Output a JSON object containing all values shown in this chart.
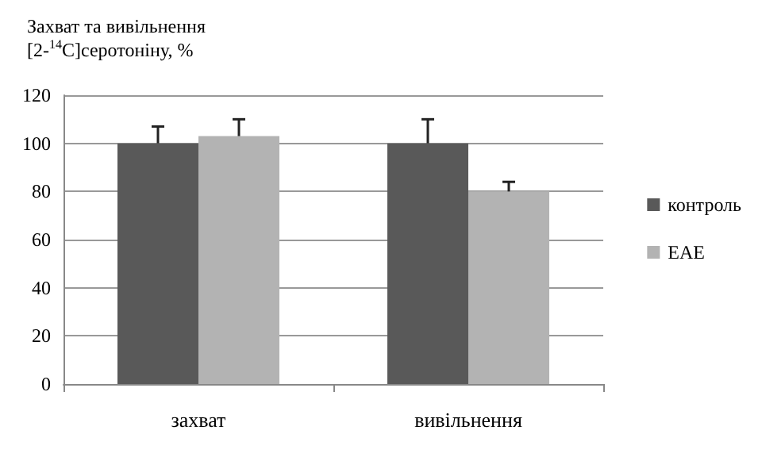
{
  "chart_data": {
    "type": "bar",
    "title": "Захват та вивільнення\n[2-$^{14}$C]серотоніну, %",
    "categories": [
      "захват",
      "вивільнення"
    ],
    "series": [
      {
        "name": "контроль",
        "color": "#595959",
        "values": [
          100,
          100
        ],
        "errors": [
          [
            100,
            107
          ],
          [
            100,
            110
          ]
        ]
      },
      {
        "name": "EAE",
        "color": "#b3b3b3",
        "values": [
          103,
          80
        ],
        "errors": [
          [
            103,
            110
          ],
          [
            80,
            84
          ]
        ]
      }
    ],
    "ylim": [
      0,
      120
    ],
    "yticks": [
      0,
      20,
      40,
      60,
      80,
      100,
      120
    ],
    "grid": "y",
    "legend": "right"
  }
}
